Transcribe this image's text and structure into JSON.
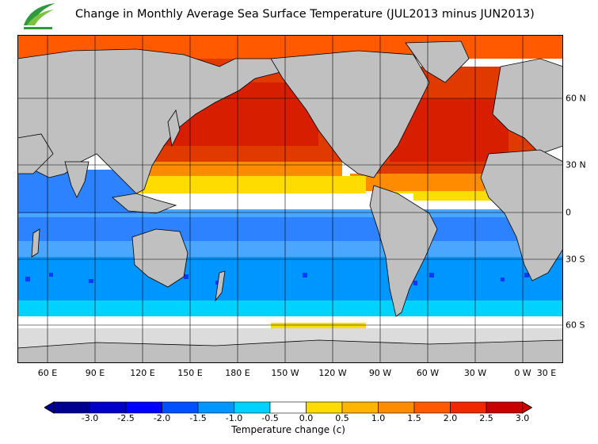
{
  "title": "Change in Monthly Average Sea Surface Temperature (JUL2013 minus JUN2013)",
  "logo": {
    "name": "observatory-logo",
    "colors": [
      "#2e9a3c",
      "#7cc242"
    ]
  },
  "map": {
    "lon_labels": [
      "60 E",
      "90 E",
      "120 E",
      "150 E",
      "180 E",
      "150 W",
      "120 W",
      "90 W",
      "60 W",
      "30 W",
      "0 W",
      "30 E"
    ],
    "lat_labels": [
      "60 N",
      "30 N",
      "0",
      "30 S",
      "60 S"
    ],
    "land_color": "#c0c0c0",
    "ice_color": "#dcdcdc"
  },
  "colorbar": {
    "ticks": [
      "-3.0",
      "-2.5",
      "-2.0",
      "-1.5",
      "-1.0",
      "-0.5",
      "0.0",
      "0.5",
      "1.0",
      "1.5",
      "2.0",
      "2.5",
      "3.0"
    ],
    "colors": [
      "#000090",
      "#0000c8",
      "#0000ff",
      "#0050ff",
      "#0096ff",
      "#00d2ff",
      "#ffffff",
      "#ffdc00",
      "#ffb400",
      "#ff8c00",
      "#ff5a00",
      "#f02800",
      "#c80000"
    ],
    "label": "Temperature change  (c)"
  }
}
